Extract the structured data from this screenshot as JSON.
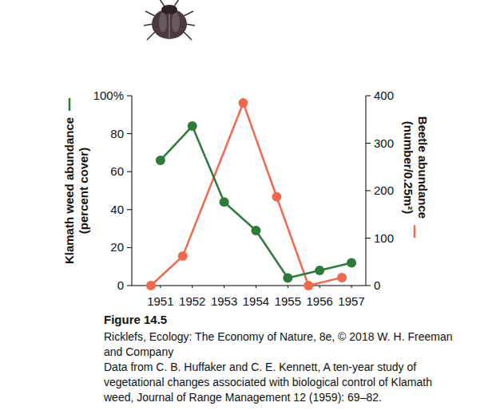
{
  "chart_data": {
    "type": "line",
    "y_label": [
      "Klamath weed abundance",
      "(percent cover)"
    ],
    "y2_label": [
      "Beetle abundance",
      "(number/0.25m²)"
    ],
    "xlim": [
      1950.1,
      1957.45
    ],
    "xticks": [
      1951,
      1952,
      1953,
      1954,
      1955,
      1956,
      1957
    ],
    "ylim": [
      0,
      100
    ],
    "yticks": [
      0,
      20,
      40,
      60,
      80,
      {
        "value": 100,
        "label": "100%"
      }
    ],
    "y2lim": [
      0,
      400
    ],
    "y2ticks": [
      0,
      100,
      200,
      300,
      400
    ],
    "grid": false,
    "series": [
      {
        "color": "#2e7a3a",
        "marker": "circle",
        "line_style": "solid",
        "x": [
          1951,
          1952,
          1953,
          1954,
          1955,
          1956,
          1957
        ],
        "values": [
          66,
          84,
          44,
          29,
          4,
          8,
          12
        ]
      },
      {
        "color": "#f0694e",
        "marker": "circle",
        "line_style": "solid",
        "axis": "y2",
        "x": [
          1950.7,
          1951.7,
          1953.6,
          1954.65,
          1955.65,
          1956.7
        ],
        "values": [
          0,
          62,
          385,
          187,
          0,
          17
        ]
      }
    ]
  },
  "caption": {
    "figure": "Figure 14.5",
    "lines": [
      "Ricklefs, Ecology: The Economy of Nature, 8e, © 2018 W. H. Freeman",
      "and Company",
      "Data from C. B. Huffaker and C. E. Kennett, A ten-year study of",
      "vegetational changes associated with biological control of Klamath",
      "weed, Journal of Range Management 12 (1959): 69–82."
    ]
  }
}
